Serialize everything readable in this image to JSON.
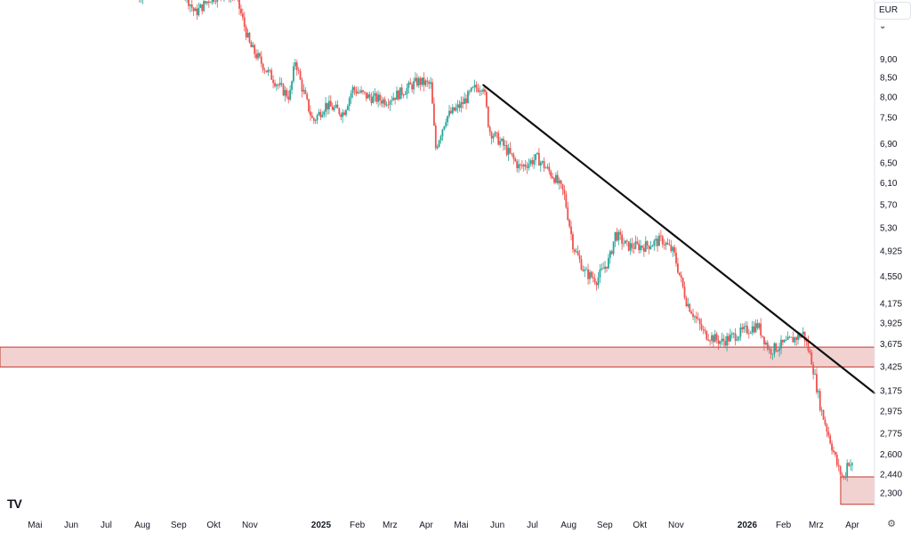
{
  "currency": "EUR",
  "currency_chevron": "chevron-down-icon",
  "logo_text": "TV",
  "settings_icon": "gear-icon",
  "chart_data": {
    "type": "candlestick",
    "title": "",
    "xlabel": "",
    "ylabel": "",
    "y_scale": "log",
    "ylim": [
      2.2,
      11.0
    ],
    "grid": false,
    "colors": {
      "up": "#26a69a",
      "down": "#ef5350",
      "trendline": "#111111",
      "zone_fill": "#f2d1d1",
      "zone_edge": "#c0392b"
    },
    "y_ticks": [
      "9,00",
      "8,50",
      "8,00",
      "7,50",
      "6,90",
      "6,50",
      "6,10",
      "5,70",
      "5,30",
      "4,925",
      "4,550",
      "4,175",
      "3,925",
      "3,675",
      "3,425",
      "3,175",
      "2,975",
      "2,775",
      "2,600",
      "2,440",
      "2,300"
    ],
    "x_ticks": [
      {
        "label": "Mai",
        "bold": false
      },
      {
        "label": "Jun",
        "bold": false
      },
      {
        "label": "Jul",
        "bold": false
      },
      {
        "label": "Aug",
        "bold": false
      },
      {
        "label": "Sep",
        "bold": false
      },
      {
        "label": "Okt",
        "bold": false
      },
      {
        "label": "Nov",
        "bold": false
      },
      {
        "label": "2025",
        "bold": true
      },
      {
        "label": "Feb",
        "bold": false
      },
      {
        "label": "Mrz",
        "bold": false
      },
      {
        "label": "Apr",
        "bold": false
      },
      {
        "label": "Mai",
        "bold": false
      },
      {
        "label": "Jun",
        "bold": false
      },
      {
        "label": "Jul",
        "bold": false
      },
      {
        "label": "Aug",
        "bold": false
      },
      {
        "label": "Sep",
        "bold": false
      },
      {
        "label": "Okt",
        "bold": false
      },
      {
        "label": "Nov",
        "bold": false
      },
      {
        "label": "2026",
        "bold": true
      },
      {
        "label": "Feb",
        "bold": false
      },
      {
        "label": "Mrz",
        "bold": false
      },
      {
        "label": "Apr",
        "bold": false
      }
    ],
    "price_path": [
      [
        "2024-07-28",
        10.9
      ],
      [
        "2024-08-05",
        11.3
      ],
      [
        "2024-08-20",
        11.1
      ],
      [
        "2024-09-05",
        11.2
      ],
      [
        "2024-09-15",
        10.4
      ],
      [
        "2024-09-28",
        10.9
      ],
      [
        "2024-10-10",
        11.1
      ],
      [
        "2024-10-20",
        11.0
      ],
      [
        "2024-11-01",
        9.4
      ],
      [
        "2024-11-15",
        8.7
      ],
      [
        "2024-11-28",
        8.2
      ],
      [
        "2024-12-05",
        8.0
      ],
      [
        "2024-12-10",
        9.0
      ],
      [
        "2024-12-15",
        8.3
      ],
      [
        "2024-12-25",
        7.4
      ],
      [
        "2025-01-05",
        7.8
      ],
      [
        "2025-01-20",
        7.6
      ],
      [
        "2025-01-28",
        8.2
      ],
      [
        "2025-02-10",
        8.0
      ],
      [
        "2025-02-25",
        7.9
      ],
      [
        "2025-03-10",
        8.1
      ],
      [
        "2025-03-25",
        8.4
      ],
      [
        "2025-04-05",
        8.3
      ],
      [
        "2025-04-09",
        6.8
      ],
      [
        "2025-04-18",
        7.5
      ],
      [
        "2025-05-01",
        7.8
      ],
      [
        "2025-05-12",
        8.2
      ],
      [
        "2025-05-20",
        8.3
      ],
      [
        "2025-05-25",
        7.2
      ],
      [
        "2025-06-05",
        6.9
      ],
      [
        "2025-06-20",
        6.4
      ],
      [
        "2025-07-05",
        6.6
      ],
      [
        "2025-07-20",
        6.2
      ],
      [
        "2025-07-28",
        5.9
      ],
      [
        "2025-08-05",
        5.0
      ],
      [
        "2025-08-15",
        4.6
      ],
      [
        "2025-08-25",
        4.5
      ],
      [
        "2025-09-05",
        4.8
      ],
      [
        "2025-09-10",
        5.2
      ],
      [
        "2025-09-20",
        5.0
      ],
      [
        "2025-10-05",
        5.0
      ],
      [
        "2025-10-20",
        5.1
      ],
      [
        "2025-10-30",
        4.9
      ],
      [
        "2025-11-10",
        4.2
      ],
      [
        "2025-11-25",
        3.8
      ],
      [
        "2025-12-10",
        3.7
      ],
      [
        "2025-12-25",
        3.8
      ],
      [
        "2026-01-10",
        3.9
      ],
      [
        "2026-01-20",
        3.6
      ],
      [
        "2026-02-05",
        3.7
      ],
      [
        "2026-02-18",
        3.8
      ],
      [
        "2026-02-25",
        3.5
      ],
      [
        "2026-03-05",
        3.0
      ],
      [
        "2026-03-15",
        2.65
      ],
      [
        "2026-03-20",
        2.48
      ],
      [
        "2026-03-25",
        2.4
      ],
      [
        "2026-03-28",
        2.55
      ],
      [
        "2026-04-01",
        2.5
      ]
    ],
    "trendline": {
      "from": [
        "2025-05-20",
        8.3
      ],
      "to": [
        "2026-04-20",
        3.15
      ]
    },
    "zones": [
      {
        "from": "2024-04-01",
        "to": "2026-04-20",
        "low": 3.42,
        "high": 3.64
      },
      {
        "from": "2026-03-22",
        "to": "2026-04-20",
        "low": 2.22,
        "high": 2.42
      }
    ]
  }
}
